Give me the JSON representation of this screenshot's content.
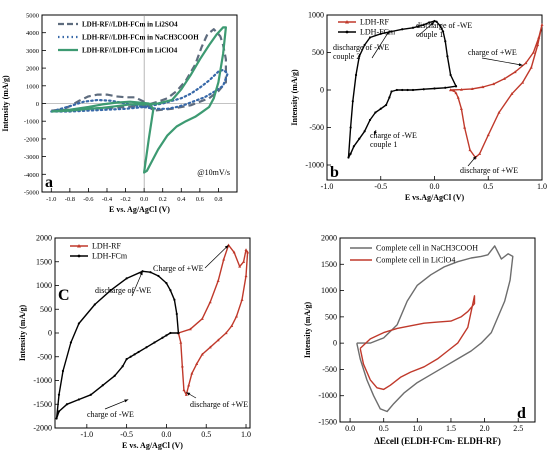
{
  "chart_data": [
    {
      "panel_label": "a",
      "type": "line",
      "xlabel": "E vs. Ag/AgCl (V)",
      "ylabel": "Intensity (mA/g)",
      "xlim": [
        -1.1,
        1.0
      ],
      "ylim": [
        -5000,
        5000
      ],
      "xticks": [
        -1.0,
        -0.8,
        -0.6,
        -0.4,
        -0.2,
        0.0,
        0.2,
        0.4,
        0.6,
        0.8
      ],
      "xtick_labels": [
        "-1.0",
        "-0.8",
        "-0.6",
        "-0.4",
        "-0.2",
        "0.0",
        "0.2",
        "0.4",
        "0.6",
        "0.8"
      ],
      "yticks": [
        -5000,
        -4000,
        -3000,
        -2000,
        -1000,
        0,
        1000,
        2000,
        3000,
        4000,
        5000
      ],
      "ytick_labels": [
        "-5000",
        "-4000",
        "-3000",
        "-2000",
        "-1000",
        "0",
        "1000",
        "2000",
        "3000",
        "4000",
        "5000"
      ],
      "annotation": "@10mV/s",
      "legend_position": "top-left",
      "series": [
        {
          "name": "LDH-RF//LDH-FCm in Li2SO4",
          "color": "#5e6c7e",
          "dash": "long",
          "x": [
            -1.0,
            -0.8,
            -0.6,
            -0.4,
            -0.2,
            -0.05,
            0.05,
            0.15,
            0.25,
            0.35,
            0.45,
            0.55,
            0.62,
            0.68,
            0.75,
            0.82,
            0.85,
            0.88,
            0.88,
            0.8,
            0.7,
            0.6,
            0.5,
            0.4,
            0.3,
            0.2,
            0.1,
            0.0,
            -0.1,
            -0.2,
            -0.3,
            -0.4,
            -0.5,
            -0.6,
            -0.7,
            -0.8,
            -0.9,
            -1.0
          ],
          "y": [
            -400,
            -350,
            -300,
            -250,
            -200,
            -150,
            -50,
            100,
            300,
            700,
            1300,
            2200,
            3200,
            3900,
            4200,
            3800,
            3300,
            2500,
            1200,
            700,
            300,
            100,
            -100,
            -200,
            -300,
            -350,
            -400,
            100,
            350,
            350,
            400,
            500,
            500,
            400,
            150,
            -150,
            -350,
            -400
          ]
        },
        {
          "name": "LDH-RF//LDH-FCm in NaCH3COOH",
          "color": "#3768a8",
          "dash": "dots",
          "x": [
            -1.0,
            -0.8,
            -0.6,
            -0.4,
            -0.2,
            0.0,
            0.2,
            0.4,
            0.5,
            0.6,
            0.7,
            0.8,
            0.85,
            0.9,
            0.85,
            0.75,
            0.65,
            0.55,
            0.45,
            0.35,
            0.25,
            0.15,
            0.05,
            -0.05,
            -0.2,
            -0.35,
            -0.5,
            -0.65,
            -0.8,
            -1.0
          ],
          "y": [
            -450,
            -450,
            -400,
            -350,
            -300,
            -200,
            0,
            300,
            550,
            900,
            1300,
            1800,
            1900,
            1700,
            1000,
            650,
            350,
            150,
            -50,
            -200,
            -300,
            -300,
            -250,
            -150,
            0,
            150,
            200,
            100,
            -150,
            -450
          ]
        },
        {
          "name": "LDH-RF//LDH-FCm in LiClO4",
          "color": "#3d9a72",
          "dash": "solid",
          "x": [
            -1.0,
            -0.8,
            -0.6,
            -0.45,
            -0.3,
            -0.15,
            0.0,
            0.15,
            0.3,
            0.4,
            0.5,
            0.6,
            0.7,
            0.78,
            0.85,
            0.88,
            0.85,
            0.8,
            0.75,
            0.7,
            0.62,
            0.55,
            0.45,
            0.35,
            0.25,
            0.15,
            0.08,
            0.03,
            0.0,
            0.05,
            0.1,
            0.05,
            -0.05,
            -0.15,
            -0.3,
            -0.45,
            -0.6,
            -0.8,
            -1.0
          ],
          "y": [
            -450,
            -400,
            -300,
            -250,
            -150,
            -50,
            -50,
            0,
            200,
            800,
            1600,
            2500,
            3300,
            3900,
            4300,
            4300,
            2800,
            1200,
            300,
            -200,
            -500,
            -750,
            -1000,
            -1300,
            -1800,
            -2600,
            -3300,
            -3800,
            -3900,
            -2000,
            -300,
            0,
            50,
            100,
            50,
            -50,
            -200,
            -350,
            -450
          ]
        }
      ]
    },
    {
      "panel_label": "b",
      "type": "line",
      "xlabel": "E vs.Ag/AgCl (V)",
      "ylabel": "Intensity (mA/g)",
      "xlim": [
        -1.0,
        1.0
      ],
      "ylim": [
        -1200,
        1000
      ],
      "xticks": [
        -1.0,
        -0.5,
        0.0,
        0.5,
        1.0
      ],
      "xtick_labels": [
        "-1.0",
        "-0.5",
        "0.0",
        "0.5",
        "1.0"
      ],
      "yticks": [
        -1000,
        -500,
        0,
        500,
        1000
      ],
      "ytick_labels": [
        "-1000",
        "-500",
        "0",
        "500",
        "1000"
      ],
      "legend_position": "top-left",
      "annotations": [
        "discharge of -WE couple 1",
        "discharge of -WE couple 2",
        "charge of +WE",
        "charge of -WE couple 1",
        "discharge of +WE"
      ],
      "series": [
        {
          "name": "LDH-RF",
          "color": "#c0392b",
          "marker": "triangle",
          "x": [
            0.15,
            0.25,
            0.35,
            0.45,
            0.55,
            0.65,
            0.75,
            0.85,
            0.92,
            0.97,
            1.0,
            0.96,
            0.9,
            0.82,
            0.72,
            0.6,
            0.5,
            0.42,
            0.38,
            0.33,
            0.28,
            0.25,
            0.22,
            0.2,
            0.18,
            0.15
          ],
          "y": [
            0,
            5,
            15,
            40,
            80,
            150,
            240,
            360,
            500,
            700,
            870,
            600,
            300,
            100,
            -50,
            -300,
            -600,
            -850,
            -900,
            -800,
            -500,
            -250,
            -100,
            -40,
            -10,
            0
          ]
        },
        {
          "name": "LDH-FCm",
          "color": "#000000",
          "marker": "dot",
          "x": [
            0.2,
            0.15,
            0.12,
            0.1,
            0.08,
            0.05,
            0.02,
            0.0,
            -0.05,
            -0.1,
            -0.15,
            -0.2,
            -0.3,
            -0.4,
            -0.5,
            -0.6,
            -0.65,
            -0.7,
            -0.73,
            -0.76,
            -0.78,
            -0.8,
            -0.78,
            -0.75,
            -0.7,
            -0.65,
            -0.6,
            -0.55,
            -0.5,
            -0.45,
            -0.42,
            -0.4,
            -0.35,
            -0.3,
            -0.25,
            -0.2,
            -0.1,
            0.0,
            0.1,
            0.2
          ],
          "y": [
            50,
            200,
            450,
            650,
            780,
            860,
            910,
            920,
            900,
            870,
            850,
            830,
            810,
            780,
            750,
            700,
            600,
            450,
            200,
            -150,
            -500,
            -900,
            -850,
            -750,
            -650,
            -550,
            -400,
            -300,
            -250,
            -200,
            -100,
            -20,
            0,
            0,
            0,
            0,
            10,
            20,
            30,
            50
          ]
        }
      ]
    },
    {
      "panel_label": "C",
      "type": "line",
      "xlabel": "E vs. Ag/AgCl (V)",
      "ylabel": "Intensity (mA/g)",
      "xlim": [
        -1.4,
        1.05
      ],
      "ylim": [
        -2000,
        2000
      ],
      "xticks": [
        -1.0,
        -0.5,
        0.0,
        0.5,
        1.0
      ],
      "xtick_labels": [
        "-1.0",
        "-0.5",
        "0.0",
        "0.5",
        "1.0"
      ],
      "yticks": [
        -2000,
        -1500,
        -1000,
        -500,
        0,
        500,
        1000,
        1500,
        2000
      ],
      "ytick_labels": [
        "-2000",
        "-1500",
        "-1000",
        "-500",
        "0",
        "500",
        "1000",
        "1500",
        "2000"
      ],
      "legend_position": "top-left",
      "annotations": [
        "Charge of +WE",
        "discharge of -WE",
        "charge of -WE",
        "discharge of +WE"
      ],
      "series": [
        {
          "name": "LDH-RF",
          "color": "#c0392b",
          "marker": "triangle",
          "x": [
            0.15,
            0.3,
            0.45,
            0.55,
            0.65,
            0.72,
            0.78,
            0.85,
            0.92,
            0.97,
            1.0,
            1.02,
            1.0,
            0.95,
            0.88,
            0.82,
            0.75,
            0.65,
            0.55,
            0.45,
            0.38,
            0.32,
            0.28,
            0.25,
            0.22,
            0.2,
            0.18,
            0.15
          ],
          "y": [
            0,
            80,
            300,
            650,
            1100,
            1550,
            1850,
            1700,
            1400,
            1500,
            1750,
            1700,
            1200,
            700,
            350,
            150,
            0,
            -150,
            -300,
            -450,
            -650,
            -850,
            -1100,
            -1300,
            -1200,
            -700,
            -200,
            0
          ]
        },
        {
          "name": "LDH-FCm",
          "color": "#000000",
          "marker": "dot",
          "x": [
            0.15,
            0.13,
            0.1,
            0.05,
            0.0,
            -0.1,
            -0.2,
            -0.3,
            -0.5,
            -0.7,
            -0.9,
            -1.1,
            -1.2,
            -1.3,
            -1.35,
            -1.38,
            -1.35,
            -1.25,
            -1.1,
            -0.95,
            -0.8,
            -0.65,
            -0.55,
            -0.5,
            -0.45,
            -0.4,
            -0.35,
            -0.25,
            -0.15,
            -0.05,
            0.0,
            0.05,
            0.15
          ],
          "y": [
            0,
            400,
            700,
            900,
            1050,
            1200,
            1280,
            1300,
            1150,
            900,
            600,
            200,
            -200,
            -800,
            -1300,
            -1800,
            -1650,
            -1500,
            -1400,
            -1300,
            -1100,
            -900,
            -700,
            -550,
            -500,
            -450,
            -400,
            -300,
            -200,
            -100,
            -50,
            0,
            0
          ]
        }
      ]
    },
    {
      "panel_label": "d",
      "type": "line",
      "xlabel": "ΔEcell (ELDH-FCm- ELDH-RF)",
      "ylabel": "Intensity (mA/g)",
      "xlim": [
        -0.15,
        2.75
      ],
      "ylim": [
        -1500,
        2000
      ],
      "xticks": [
        0.0,
        0.5,
        1.0,
        1.5,
        2.0,
        2.5
      ],
      "xtick_labels": [
        "0.0",
        "0.5",
        "1.0",
        "1.5",
        "2.0",
        "2.5"
      ],
      "yticks": [
        -1500,
        -1000,
        -500,
        0,
        500,
        1000,
        1500,
        2000
      ],
      "ytick_labels": [
        "-1500",
        "-1000",
        "-500",
        "0",
        "500",
        "1000",
        "1500",
        "2000"
      ],
      "legend_position": "top-left",
      "series": [
        {
          "name": "Complete cell in NaCH3COOH",
          "color": "#6d6d6d",
          "x": [
            0.1,
            0.3,
            0.5,
            0.7,
            0.85,
            1.0,
            1.2,
            1.4,
            1.6,
            1.8,
            1.95,
            2.05,
            2.15,
            2.25,
            2.35,
            2.42,
            2.38,
            2.3,
            2.2,
            2.1,
            1.95,
            1.8,
            1.6,
            1.4,
            1.2,
            1.0,
            0.8,
            0.65,
            0.55,
            0.45,
            0.35,
            0.25,
            0.15,
            0.1
          ],
          "y": [
            0,
            0,
            100,
            350,
            800,
            1100,
            1300,
            1450,
            1550,
            1620,
            1650,
            1680,
            1850,
            1600,
            1700,
            1650,
            1200,
            800,
            500,
            200,
            0,
            -150,
            -300,
            -450,
            -600,
            -750,
            -950,
            -1150,
            -1300,
            -1250,
            -1000,
            -700,
            -300,
            0
          ]
        },
        {
          "name": "Complete cell in LiClO4",
          "color": "#c0392b",
          "x": [
            0.15,
            0.3,
            0.5,
            0.7,
            0.9,
            1.1,
            1.3,
            1.5,
            1.65,
            1.75,
            1.85,
            1.85,
            1.75,
            1.6,
            1.45,
            1.3,
            1.1,
            0.9,
            0.75,
            0.6,
            0.5,
            0.4,
            0.3,
            0.2,
            0.15
          ],
          "y": [
            -100,
            80,
            200,
            280,
            330,
            380,
            400,
            420,
            500,
            600,
            750,
            900,
            300,
            0,
            -150,
            -300,
            -450,
            -550,
            -650,
            -800,
            -880,
            -850,
            -700,
            -400,
            -100
          ]
        }
      ]
    }
  ]
}
